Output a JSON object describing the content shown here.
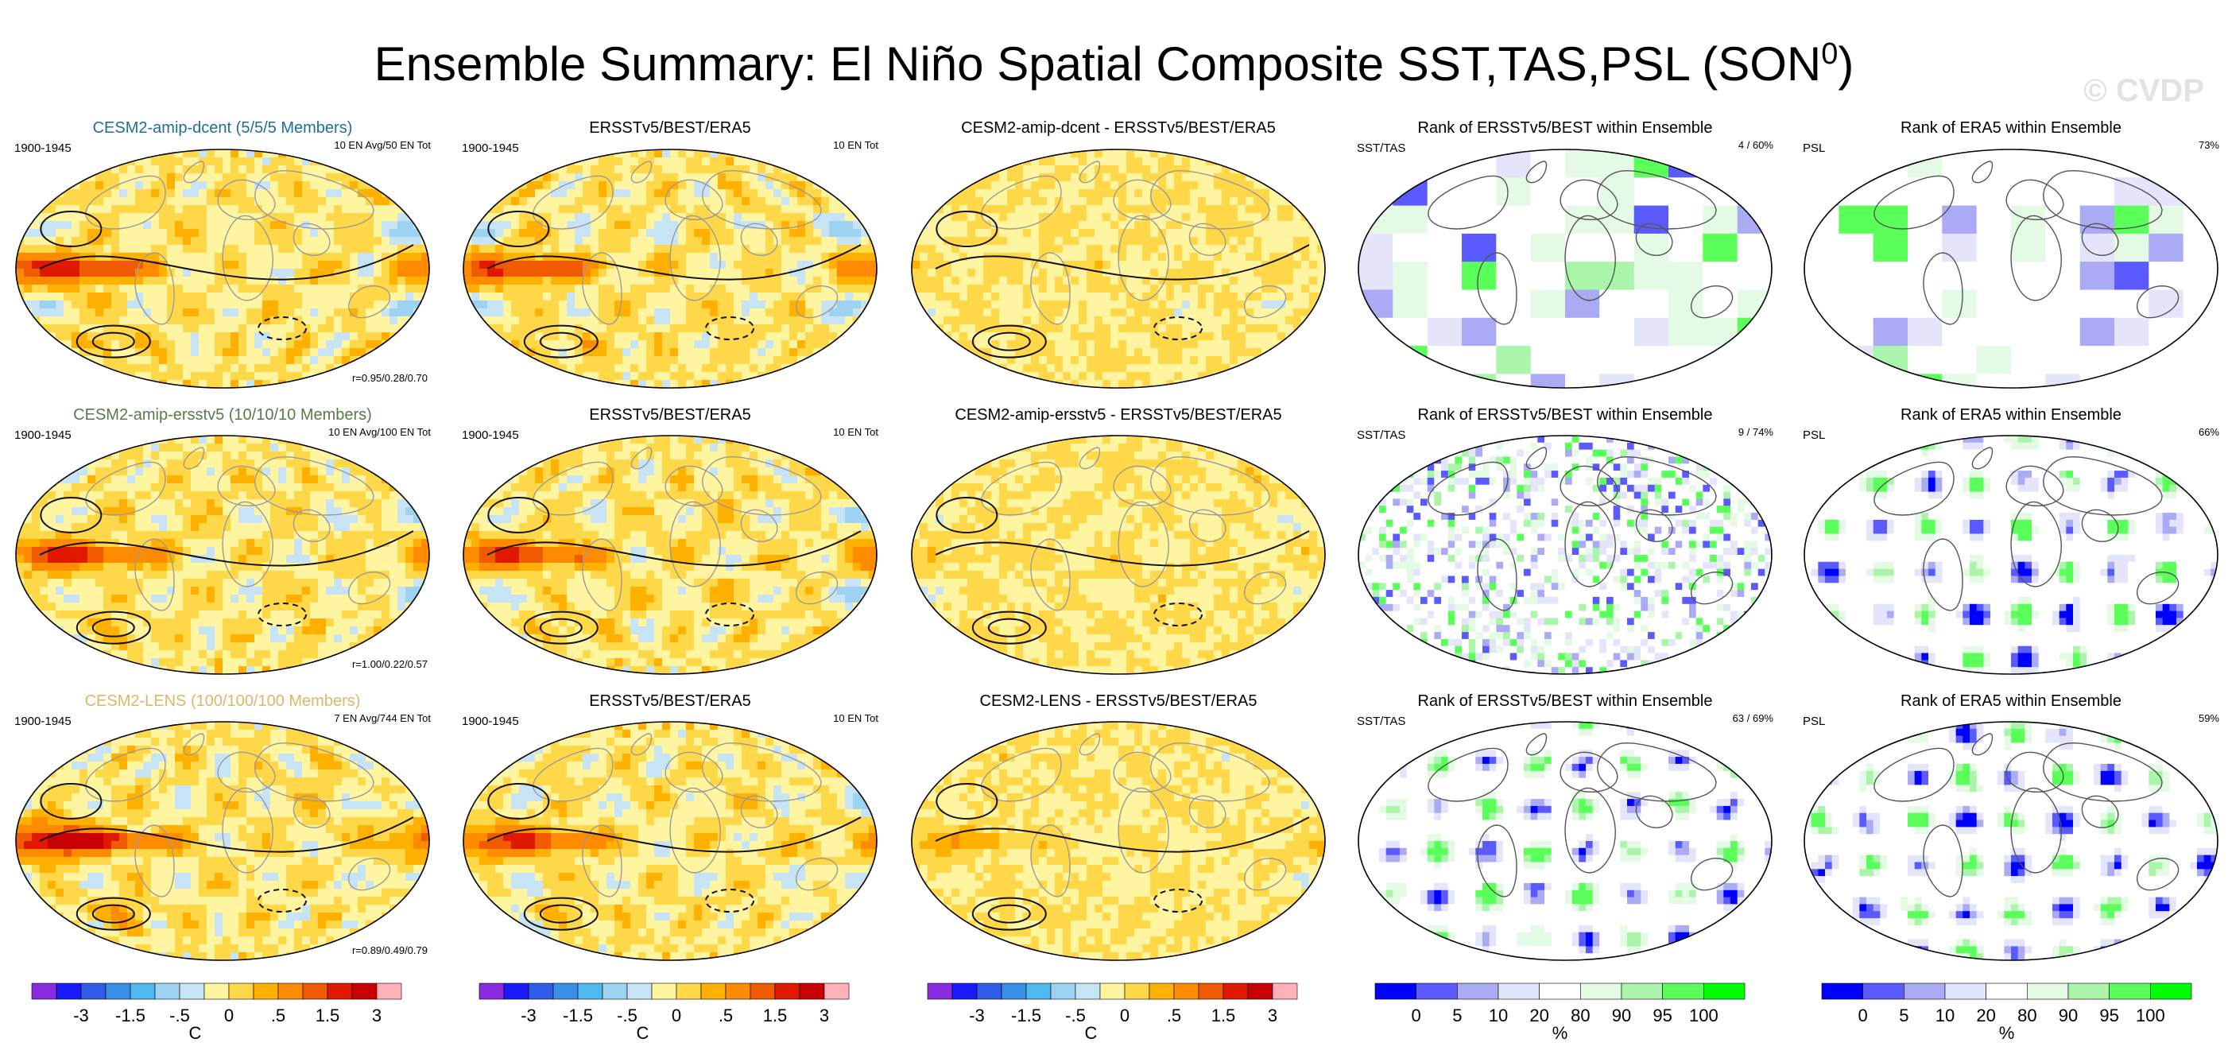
{
  "title": {
    "text": "Ensemble Summary: El Niño Spatial Composite SST,TAS,PSL (SON",
    "superscript": "0",
    "suffix": ")"
  },
  "watermark": "© CVDP",
  "colors": {
    "model_title_dcent": "#1f6f94",
    "model_title_ersstv5": "#5a7a4a",
    "model_title_lens": "#d9b968",
    "land": "#ffffff",
    "coast": "#9a9a9a",
    "contour": "#111111"
  },
  "chart_data": {
    "type": "map-panel-grid",
    "rows": [
      {
        "panels": [
          {
            "kind": "model",
            "title": "CESM2-amip-dcent (5/5/5 Members)",
            "title_color": "model_title_dcent",
            "left_label": "1900-1945",
            "right_label": "10 EN Avg/50 EN Tot",
            "bottom_label": "r=0.95/0.28/0.70",
            "nino_amp": 1.7,
            "southern_amp": 0.6
          },
          {
            "kind": "obs",
            "title": "ERSSTv5/BEST/ERA5",
            "left_label": "1900-1945",
            "right_label": "10 EN Tot",
            "nino_amp": 1.4,
            "southern_amp": 0.5
          },
          {
            "kind": "diff",
            "title": "CESM2-amip-dcent - ERSSTv5/BEST/ERA5",
            "nino_amp": 0.2,
            "southern_amp": 0.1
          },
          {
            "kind": "rank",
            "title": "Rank of ERSSTv5/BEST within Ensemble",
            "left_label": "SST/TAS",
            "right_label": "4 /  60%",
            "style": "blocky",
            "seed": 11
          },
          {
            "kind": "rank",
            "title": "Rank of ERA5 within Ensemble",
            "left_label": "PSL",
            "right_label": "73%",
            "style": "blocky",
            "seed": 12
          }
        ]
      },
      {
        "panels": [
          {
            "kind": "model",
            "title": "CESM2-amip-ersstv5 (10/10/10 Members)",
            "title_color": "model_title_ersstv5",
            "left_label": "1900-1945",
            "right_label": "10 EN Avg/100 EN Tot",
            "bottom_label": "r=1.00/0.22/0.57",
            "nino_amp": 1.5,
            "southern_amp": 0.6
          },
          {
            "kind": "obs",
            "title": "ERSSTv5/BEST/ERA5",
            "left_label": "1900-1945",
            "right_label": "10 EN Tot",
            "nino_amp": 1.4,
            "southern_amp": 0.5
          },
          {
            "kind": "diff",
            "title": "CESM2-amip-ersstv5 - ERSSTv5/BEST/ERA5",
            "nino_amp": 0.15,
            "southern_amp": 0.1
          },
          {
            "kind": "rank",
            "title": "Rank of ERSSTv5/BEST within Ensemble",
            "left_label": "SST/TAS",
            "right_label": "9 /  74%",
            "style": "speckle",
            "seed": 21
          },
          {
            "kind": "rank",
            "title": "Rank of ERA5 within Ensemble",
            "left_label": "PSL",
            "right_label": "66%",
            "style": "smooth",
            "seed": 22
          }
        ]
      },
      {
        "panels": [
          {
            "kind": "model",
            "title": "CESM2-LENS (100/100/100 Members)",
            "title_color": "model_title_lens",
            "left_label": "1900-1945",
            "right_label": "7 EN Avg/744 EN Tot",
            "bottom_label": "r=0.89/0.49/0.79",
            "nino_amp": 2.4,
            "southern_amp": 0.8
          },
          {
            "kind": "obs",
            "title": "ERSSTv5/BEST/ERA5",
            "left_label": "1900-1945",
            "right_label": "10 EN Tot",
            "nino_amp": 1.4,
            "southern_amp": 0.5
          },
          {
            "kind": "diff",
            "title": "CESM2-LENS - ERSSTv5/BEST/ERA5",
            "nino_amp": 0.9,
            "southern_amp": 0.2
          },
          {
            "kind": "rank",
            "title": "Rank of ERSSTv5/BEST within Ensemble",
            "left_label": "SST/TAS",
            "right_label": "63 /  69%",
            "style": "smooth",
            "seed": 31
          },
          {
            "kind": "rank",
            "title": "Rank of ERA5 within Ensemble",
            "left_label": "PSL",
            "right_label": "59%",
            "style": "smooth",
            "seed": 32
          }
        ]
      }
    ],
    "temp_colorbar": {
      "unit": "C",
      "levels": [
        -4,
        -3,
        -2,
        -1.5,
        -1,
        -0.5,
        -0.25,
        0,
        0.25,
        0.5,
        1,
        1.5,
        2,
        3,
        4
      ],
      "tick_labels": [
        "-3",
        "-1.5",
        "-.5",
        "0",
        ".5",
        "1.5",
        "3"
      ],
      "tick_values": [
        -3,
        -1.5,
        -0.5,
        0,
        0.5,
        1.5,
        3
      ],
      "colors": [
        "#8a2be2",
        "#1a1aff",
        "#2e5ce6",
        "#3a8ee6",
        "#4fb8f0",
        "#9dd3f0",
        "#c6e4f5",
        "#fff5a0",
        "#ffd84a",
        "#ffb000",
        "#ff8c00",
        "#f05a00",
        "#e01800",
        "#c80000",
        "#ffb0b8"
      ]
    },
    "rank_colorbar": {
      "unit": "%",
      "levels": [
        0,
        5,
        10,
        20,
        80,
        90,
        95,
        100
      ],
      "tick_labels": [
        "0",
        "5",
        "10",
        "20",
        "80",
        "90",
        "95",
        "100"
      ],
      "colors": [
        "#0000ff",
        "#5a5aff",
        "#aaaaf5",
        "#e4e4fa",
        "#ffffff",
        "#e4fae4",
        "#aaf5aa",
        "#5aff5a",
        "#00ff00"
      ]
    }
  }
}
